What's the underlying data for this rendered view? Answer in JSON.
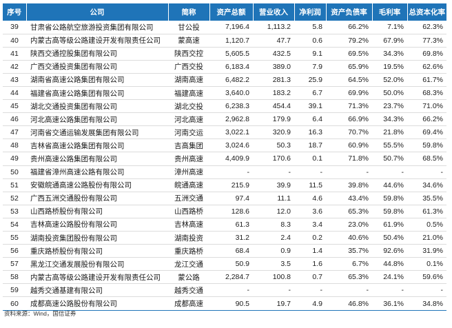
{
  "table": {
    "headers": [
      "序号",
      "公司",
      "简称",
      "资产总额",
      "营业收入",
      "净利润",
      "资产负债率",
      "毛利率",
      "总资本化率"
    ],
    "rows": [
      [
        "39",
        "甘肃省公路航空旅游投资集团有限公司",
        "甘公投",
        "7,196.4",
        "1,113.2",
        "5.8",
        "66.2%",
        "7.1%",
        "62.3%"
      ],
      [
        "40",
        "内蒙古高等级公路建设开发有限责任公司",
        "蒙高速",
        "1,120.7",
        "47.7",
        "0.6",
        "79.2%",
        "67.9%",
        "77.3%"
      ],
      [
        "41",
        "陕西交通控股集团有限公司",
        "陕西交控",
        "5,605.5",
        "432.5",
        "9.1",
        "69.5%",
        "34.3%",
        "69.8%"
      ],
      [
        "42",
        "广西交通投资集团有限公司",
        "广西交投",
        "6,183.4",
        "389.0",
        "7.9",
        "65.9%",
        "19.5%",
        "62.6%"
      ],
      [
        "43",
        "湖南省高速公路集团有限公司",
        "湖南高速",
        "6,482.2",
        "281.3",
        "25.9",
        "64.5%",
        "52.0%",
        "61.7%"
      ],
      [
        "44",
        "福建省高速公路集团有限公司",
        "福建高速",
        "3,640.0",
        "183.2",
        "6.7",
        "69.9%",
        "50.0%",
        "68.3%"
      ],
      [
        "45",
        "湖北交通投资集团有限公司",
        "湖北交投",
        "6,238.3",
        "454.4",
        "39.1",
        "71.3%",
        "23.7%",
        "71.0%"
      ],
      [
        "46",
        "河北高速公路集团有限公司",
        "河北高速",
        "2,962.8",
        "179.9",
        "6.4",
        "66.9%",
        "34.3%",
        "66.2%"
      ],
      [
        "47",
        "河南省交通运输发展集团有限公司",
        "河南交运",
        "3,022.1",
        "320.9",
        "16.3",
        "70.7%",
        "21.8%",
        "69.4%"
      ],
      [
        "48",
        "吉林省高速公路集团有限公司",
        "吉高集团",
        "3,024.6",
        "50.3",
        "18.7",
        "60.9%",
        "55.5%",
        "59.8%"
      ],
      [
        "49",
        "贵州高速公路集团有限公司",
        "贵州高速",
        "4,409.9",
        "170.6",
        "0.1",
        "71.8%",
        "50.7%",
        "68.5%"
      ],
      [
        "50",
        "福建省漳州高速公路有限公司",
        "漳州高速",
        "-",
        "-",
        "-",
        "-",
        "-",
        "-"
      ],
      [
        "51",
        "安徽皖通高速公路股份有限公司",
        "皖通高速",
        "215.9",
        "39.9",
        "11.5",
        "39.8%",
        "44.6%",
        "34.6%"
      ],
      [
        "52",
        "广西五洲交通股份有限公司",
        "五洲交通",
        "97.4",
        "11.1",
        "4.6",
        "43.4%",
        "59.8%",
        "35.5%"
      ],
      [
        "53",
        "山西路桥股份有限公司",
        "山西路桥",
        "128.6",
        "12.0",
        "3.6",
        "65.3%",
        "59.8%",
        "61.3%"
      ],
      [
        "54",
        "吉林高速公路股份有限公司",
        "吉林高速",
        "61.3",
        "8.3",
        "3.4",
        "23.0%",
        "61.9%",
        "0.5%"
      ],
      [
        "55",
        "湖南投资集团股份有限公司",
        "湖南投资",
        "31.2",
        "2.4",
        "0.2",
        "40.6%",
        "50.4%",
        "21.0%"
      ],
      [
        "56",
        "重庆路桥股份有限公司",
        "重庆路桥",
        "68.4",
        "0.9",
        "1.4",
        "35.7%",
        "92.6%",
        "31.9%"
      ],
      [
        "57",
        "黑龙江交通发展股份有限公司",
        "龙江交通",
        "50.9",
        "3.5",
        "1.6",
        "6.7%",
        "44.8%",
        "0.1%"
      ],
      [
        "58",
        "内蒙古高等级公路建设开发有限责任公司",
        "蒙公路",
        "2,284.7",
        "100.8",
        "0.7",
        "65.3%",
        "24.1%",
        "59.6%"
      ],
      [
        "59",
        "越秀交通基建有限公司",
        "越秀交通",
        "-",
        "-",
        "-",
        "-",
        "-",
        "-"
      ],
      [
        "60",
        "成都高速公路股份有限公司",
        "成都高速",
        "90.5",
        "19.7",
        "4.9",
        "46.8%",
        "36.1%",
        "34.8%"
      ]
    ]
  },
  "footer": {
    "source": "资料来源：Wind，国信证券"
  },
  "colors": {
    "header_bg": "#1f74b8",
    "header_text": "#ffffff"
  }
}
